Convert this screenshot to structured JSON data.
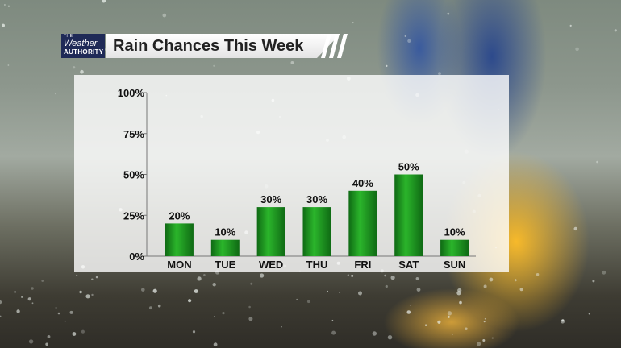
{
  "header": {
    "logo": {
      "line1": "THE",
      "line2": "Weather",
      "line3": "AUTHORITY"
    },
    "title": "Rain Chances This Week"
  },
  "colors": {
    "bar": "#1e9a1e",
    "bar_dark": "#0f6a14",
    "logo_bg": "#1f2a57"
  },
  "chart_data": {
    "type": "bar",
    "title": "Rain Chances This Week",
    "categories": [
      "MON",
      "TUE",
      "WED",
      "THU",
      "FRI",
      "SAT",
      "SUN"
    ],
    "values": [
      20,
      10,
      30,
      30,
      40,
      50,
      10
    ],
    "data_labels": [
      "20%",
      "10%",
      "30%",
      "30%",
      "40%",
      "50%",
      "10%"
    ],
    "ylim": [
      0,
      100
    ],
    "yticks": [
      0,
      25,
      50,
      75,
      100
    ],
    "ytick_labels": [
      "0%",
      "25%",
      "50%",
      "75%",
      "100%"
    ],
    "grid": false,
    "xlabel": "",
    "ylabel": ""
  }
}
